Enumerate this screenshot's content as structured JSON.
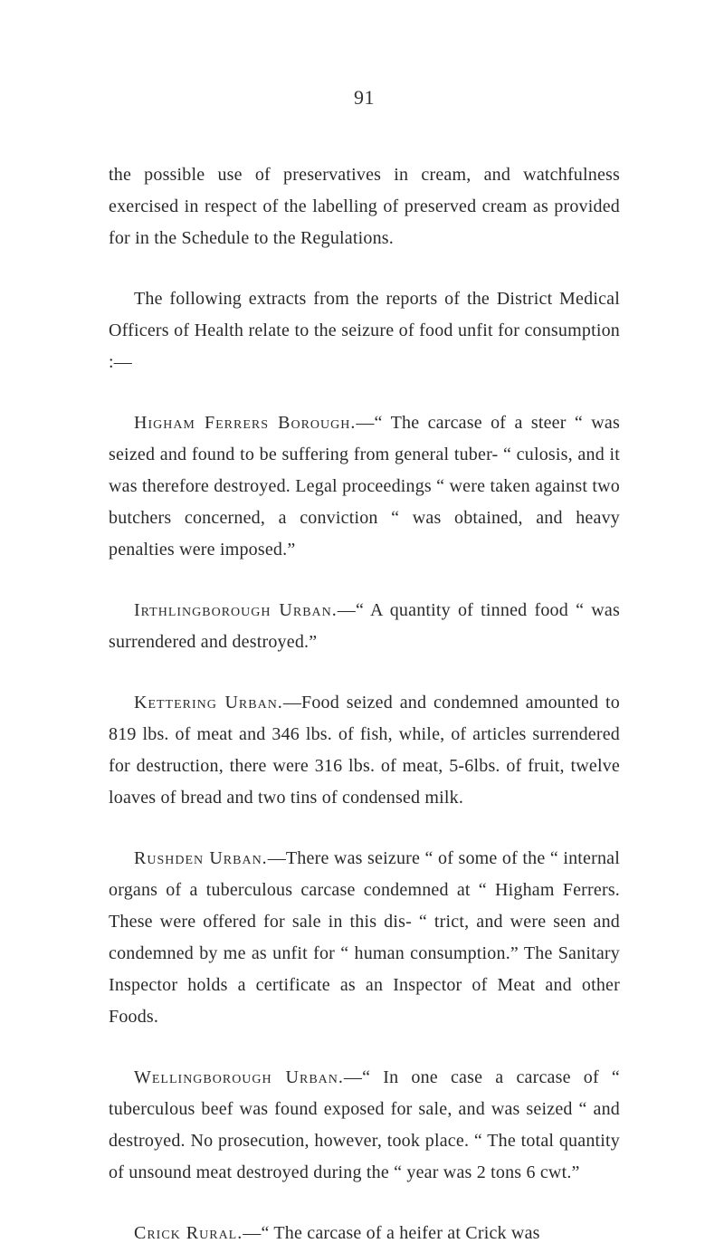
{
  "page_number": "91",
  "paragraphs": {
    "p1": "the possible use of preservatives in cream, and watchfulness exercised in respect of the labelling of preserved cream as provided for in the Schedule to the Regulations.",
    "p2": "The following extracts from the reports of the District Medical Officers of Health relate to the seizure of food unfit for consumption :—",
    "p3_lead": "Higham Ferrers Borough.",
    "p3_rest": "—“ The carcase of a steer “ was seized and found to be suffering from general tuber- “ culosis, and it was therefore destroyed. Legal proceedings “ were taken against two butchers concerned, a conviction “ was obtained, and heavy penalties were imposed.”",
    "p4_lead": "Irthlingborough Urban.",
    "p4_rest": "—“ A quantity of tinned food “ was surrendered and destroyed.”",
    "p5_lead": "Kettering Urban.",
    "p5_rest": "—Food seized and condemned amounted to 819 lbs. of meat and 346 lbs. of fish, while, of articles sur­rendered for destruction, there were 316 lbs. of meat, 5‑6lbs. of fruit, twelve loaves of bread and two tins of condensed milk.",
    "p6_lead": "Rushden Urban.",
    "p6_rest": "—There was seizure “ of some of the “ internal organs of a tuberculous carcase condemned at “ Higham Ferrers. These were offered for sale in this dis- “ trict, and were seen and condemned by me as unfit for “ human consumption.” The Sanitary Inspector holds a certificate as an Inspector of Meat and other Foods.",
    "p7_lead": "Wellingborough Urban.",
    "p7_rest": "—“ In one case a carcase of “ tuberculous beef was found exposed for sale, and was seized “ and destroyed. No prosecution, however, took place. “ The total quantity of unsound meat destroyed during the “ year was 2 tons 6 cwt.”",
    "p8_lead": "Crick Rural.",
    "p8_rest": "—“ The carcase of a heifer at Crick was"
  }
}
